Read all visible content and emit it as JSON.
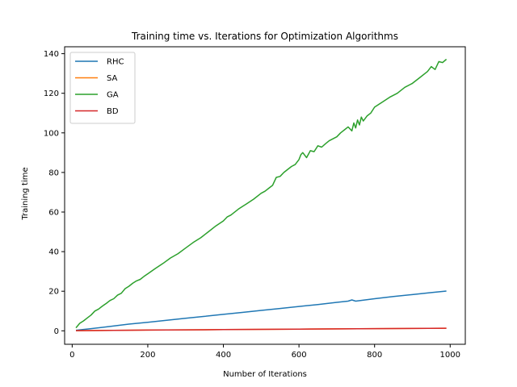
{
  "chart_data": {
    "type": "line",
    "title": "Training time  vs. Iterations for Optimization Algorithms",
    "xlabel": "Number of Iterations",
    "ylabel": "Training time",
    "xlim": [
      -20,
      1040
    ],
    "ylim": [
      -6.8,
      143.5
    ],
    "xticks": [
      0,
      200,
      400,
      600,
      800,
      1000
    ],
    "yticks": [
      0,
      20,
      40,
      60,
      80,
      100,
      120,
      140
    ],
    "grid": false,
    "legend_position": "top-left",
    "series": [
      {
        "name": "RHC",
        "color": "#1f77b4",
        "x": [
          10,
          50,
          100,
          150,
          200,
          250,
          300,
          350,
          400,
          450,
          500,
          550,
          600,
          650,
          700,
          730,
          740,
          750,
          800,
          850,
          900,
          950,
          990
        ],
        "y": [
          0.3,
          1.1,
          2.2,
          3.4,
          4.3,
          5.3,
          6.3,
          7.3,
          8.3,
          9.3,
          10.3,
          11.3,
          12.3,
          13.3,
          14.4,
          15.0,
          15.6,
          15.0,
          16.2,
          17.3,
          18.3,
          19.3,
          20.1
        ]
      },
      {
        "name": "SA",
        "color": "#ff7f0e",
        "x": [
          10,
          200,
          400,
          600,
          800,
          990
        ],
        "y": [
          0.1,
          0.35,
          0.6,
          0.85,
          1.1,
          1.3
        ]
      },
      {
        "name": "GA",
        "color": "#2ca02c",
        "x": [
          10,
          20,
          30,
          40,
          50,
          60,
          70,
          80,
          90,
          100,
          110,
          120,
          130,
          140,
          150,
          160,
          170,
          180,
          190,
          200,
          220,
          240,
          260,
          280,
          300,
          320,
          340,
          360,
          380,
          400,
          410,
          420,
          440,
          460,
          480,
          500,
          510,
          520,
          530,
          540,
          550,
          560,
          580,
          590,
          600,
          605,
          610,
          620,
          630,
          640,
          650,
          660,
          670,
          680,
          700,
          710,
          720,
          730,
          740,
          745,
          750,
          755,
          760,
          765,
          770,
          780,
          790,
          800,
          820,
          840,
          860,
          880,
          900,
          920,
          940,
          950,
          960,
          970,
          980,
          990
        ],
        "y": [
          1.5,
          3.8,
          5.0,
          6.5,
          8.0,
          10.0,
          11.0,
          12.5,
          13.8,
          15.3,
          16.2,
          18.0,
          19.0,
          21.3,
          22.5,
          24.0,
          25.2,
          26.0,
          27.5,
          28.8,
          31.5,
          34.0,
          36.8,
          39.0,
          41.8,
          44.6,
          47.0,
          50.0,
          53.0,
          55.5,
          57.5,
          58.5,
          61.5,
          64.0,
          66.5,
          69.5,
          70.5,
          72.0,
          73.5,
          77.5,
          78.0,
          80.0,
          83.0,
          84.0,
          86.5,
          89.0,
          90.0,
          87.5,
          91.0,
          90.5,
          93.5,
          92.8,
          94.5,
          96.0,
          98.0,
          100.0,
          101.5,
          103.0,
          101.0,
          105.0,
          102.5,
          106.5,
          104.0,
          108.0,
          106.0,
          108.5,
          110.0,
          113.0,
          115.5,
          118.0,
          120.0,
          123.0,
          125.0,
          128.0,
          131.0,
          133.5,
          132.0,
          136.0,
          135.5,
          137.2
        ]
      },
      {
        "name": "BD",
        "color": "#d62728",
        "x": [
          10,
          200,
          400,
          600,
          800,
          990
        ],
        "y": [
          0.1,
          0.35,
          0.6,
          0.85,
          1.1,
          1.3
        ]
      }
    ]
  }
}
